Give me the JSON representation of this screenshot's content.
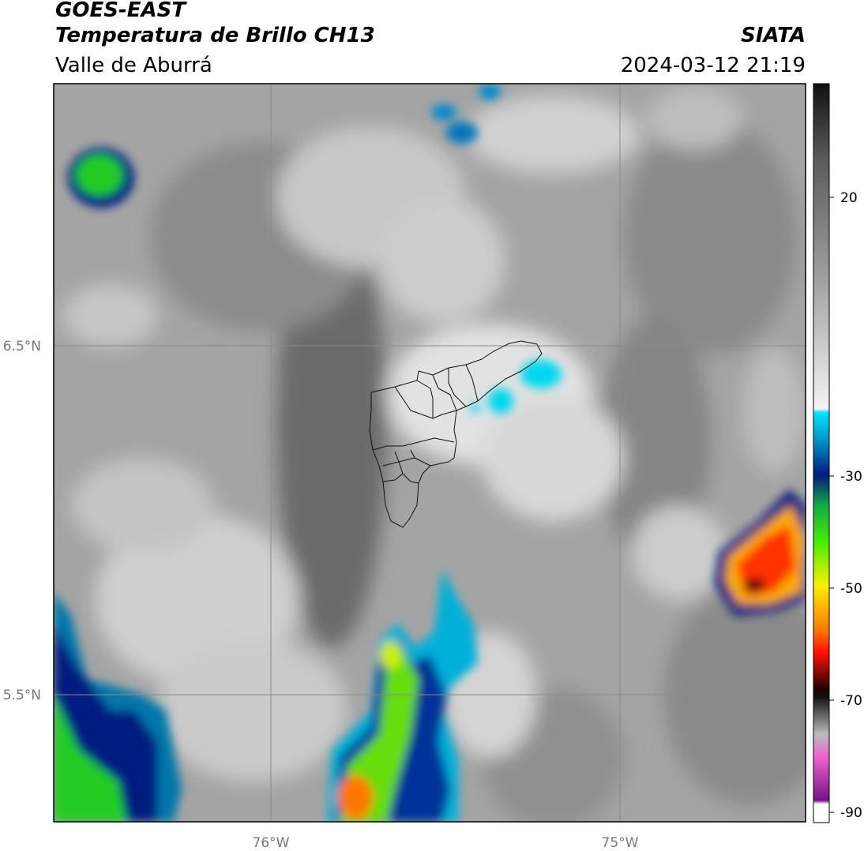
{
  "header": {
    "satellite": "GOES-EAST",
    "product": "Temperatura de Brillo CH13",
    "region": "Valle de Aburrá",
    "agency": "SIATA",
    "datetime": "2024-03-12 21:19"
  },
  "map": {
    "lat_labels": [
      "6.5°N",
      "5.5°N"
    ],
    "lon_labels": [
      "76°W",
      "75°W"
    ]
  },
  "colorbar": {
    "tick_labels": [
      "20",
      "-30",
      "-50",
      "-70",
      "-90"
    ],
    "colors": {
      "warm_gray_top": "#111111",
      "light_gray": "#f2f2f2",
      "cyan": "#00e5ff",
      "dark_blue": "#001a80",
      "green": "#22cc22",
      "yellow": "#ffee00",
      "red": "#ff1100",
      "black": "#000000",
      "pink": "#ee66cc",
      "purple": "#771188",
      "white_bottom": "#ffffff"
    }
  }
}
